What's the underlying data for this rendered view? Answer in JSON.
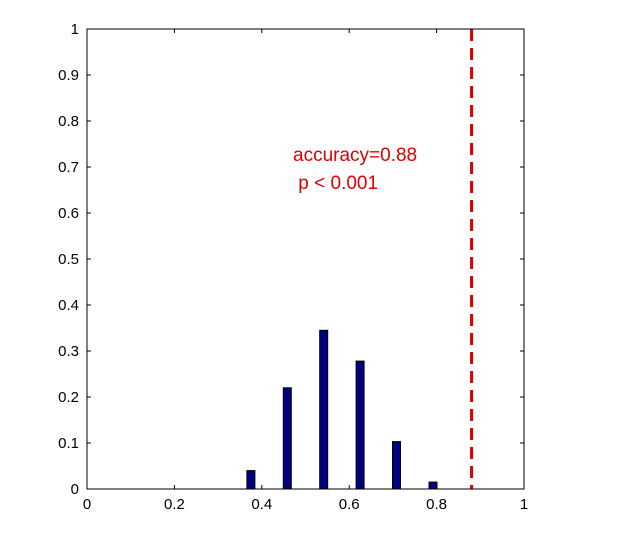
{
  "chart_data": {
    "type": "bar",
    "x": [
      0.375,
      0.4583,
      0.5417,
      0.625,
      0.7083,
      0.7917
    ],
    "values": [
      0.04,
      0.22,
      0.345,
      0.278,
      0.103,
      0.015
    ],
    "xlim": [
      0,
      1
    ],
    "ylim": [
      0,
      1
    ],
    "xticks": [
      "0",
      "0.2",
      "0.4",
      "0.6",
      "0.8",
      "1"
    ],
    "yticks": [
      "0",
      "0.1",
      "0.2",
      "0.3",
      "0.4",
      "0.5",
      "0.6",
      "0.7",
      "0.8",
      "0.9",
      "1"
    ],
    "bar_color": "#000080",
    "reference_line": {
      "x": 0.88,
      "color": "#dd0000",
      "style": "dashed"
    },
    "annotations": [
      "accuracy=0.88",
      " p < 0.001"
    ],
    "annotation_color": "#dd0000",
    "grid": false,
    "title": "",
    "xlabel": "",
    "ylabel": ""
  }
}
